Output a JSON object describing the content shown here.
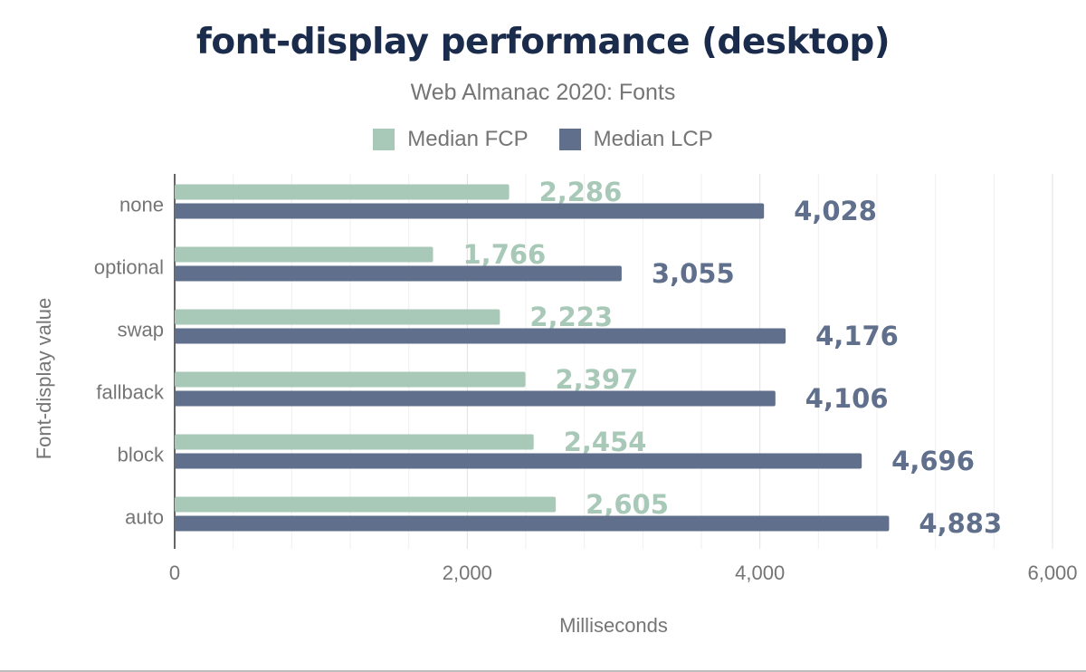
{
  "chart_data": {
    "type": "bar",
    "orientation": "horizontal",
    "title": "font-display performance (desktop)",
    "subtitle": "Web Almanac 2020: Fonts",
    "xlabel": "Milliseconds",
    "ylabel": "Font-display value",
    "categories": [
      "none",
      "optional",
      "swap",
      "fallback",
      "block",
      "auto"
    ],
    "series": [
      {
        "name": "Median FCP",
        "color": "#a8c8b8",
        "values": [
          2286,
          1766,
          2223,
          2397,
          2454,
          2605
        ],
        "labels": [
          "2,286",
          "1,766",
          "2,223",
          "2,397",
          "2,454",
          "2,605"
        ]
      },
      {
        "name": "Median LCP",
        "color": "#5f6f8c",
        "values": [
          4028,
          3055,
          4176,
          4106,
          4696,
          4883
        ],
        "labels": [
          "4,028",
          "3,055",
          "4,176",
          "4,106",
          "4,696",
          "4,883"
        ]
      }
    ],
    "xlim": [
      0,
      6000
    ],
    "xticks": [
      0,
      2000,
      4000,
      6000
    ],
    "xtick_labels": [
      "0",
      "2,000",
      "4,000",
      "6,000"
    ],
    "grid": true,
    "legend": "top"
  }
}
